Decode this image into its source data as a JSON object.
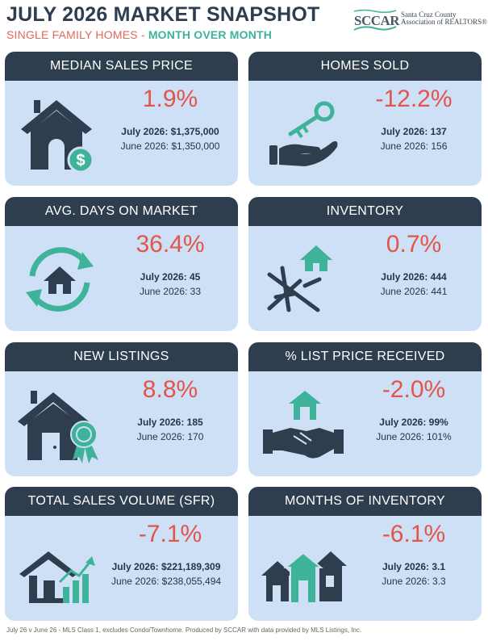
{
  "header": {
    "title": "JULY 2026 MARKET SNAPSHOT",
    "subtitle_a": "SINGLE FAMILY HOMES - ",
    "subtitle_b": "MONTH OVER MONTH"
  },
  "logo": {
    "abbr": "SCCAR",
    "line1": "Santa Cruz County",
    "line2": "Association of REALTORS®"
  },
  "colors": {
    "navy": "#2e3e4e",
    "card_bg": "#cde0f5",
    "teal": "#3fb39a",
    "red": "#e2554a"
  },
  "cards": [
    {
      "title": "MEDIAN SALES PRICE",
      "change": "1.9%",
      "current": "July 2026: $1,375,000",
      "previous": "June 2026: $1,350,000",
      "icon": "house-dollar-icon"
    },
    {
      "title": "HOMES SOLD",
      "change": "-12.2%",
      "current": "July 2026: 137",
      "previous": "June 2026: 156",
      "icon": "hand-key-icon"
    },
    {
      "title": "AVG. DAYS ON MARKET",
      "change": "36.4%",
      "current": "July 2026: 45",
      "previous": "June 2026: 33",
      "icon": "house-cycle-icon"
    },
    {
      "title": "INVENTORY",
      "change": "0.7%",
      "current": "July 2026: 444",
      "previous": "June 2026: 441",
      "icon": "house-blueprint-icon"
    },
    {
      "title": "NEW LISTINGS",
      "change": "8.8%",
      "current": "July 2026: 185",
      "previous": "June 2026: 170",
      "icon": "house-badge-icon"
    },
    {
      "title": "% LIST PRICE RECEIVED",
      "change": "-2.0%",
      "current": "July 2026: 99%",
      "previous": "June 2026: 101%",
      "icon": "handshake-house-icon"
    },
    {
      "title": "TOTAL SALES VOLUME (SFR)",
      "change": "-7.1%",
      "current": "July 2026: $221,189,309",
      "previous": "June 2026: $238,055,494",
      "icon": "house-chart-icon"
    },
    {
      "title": "MONTHS OF INVENTORY",
      "change": "-6.1%",
      "current": "July 2026: 3.1",
      "previous": "June 2026: 3.3",
      "icon": "three-houses-icon"
    }
  ],
  "footer": "July 26  v  June 26 - MLS Class 1, excludes Condo/Townhome. Produced by SCCAR with data provided by MLS Listings, Inc."
}
